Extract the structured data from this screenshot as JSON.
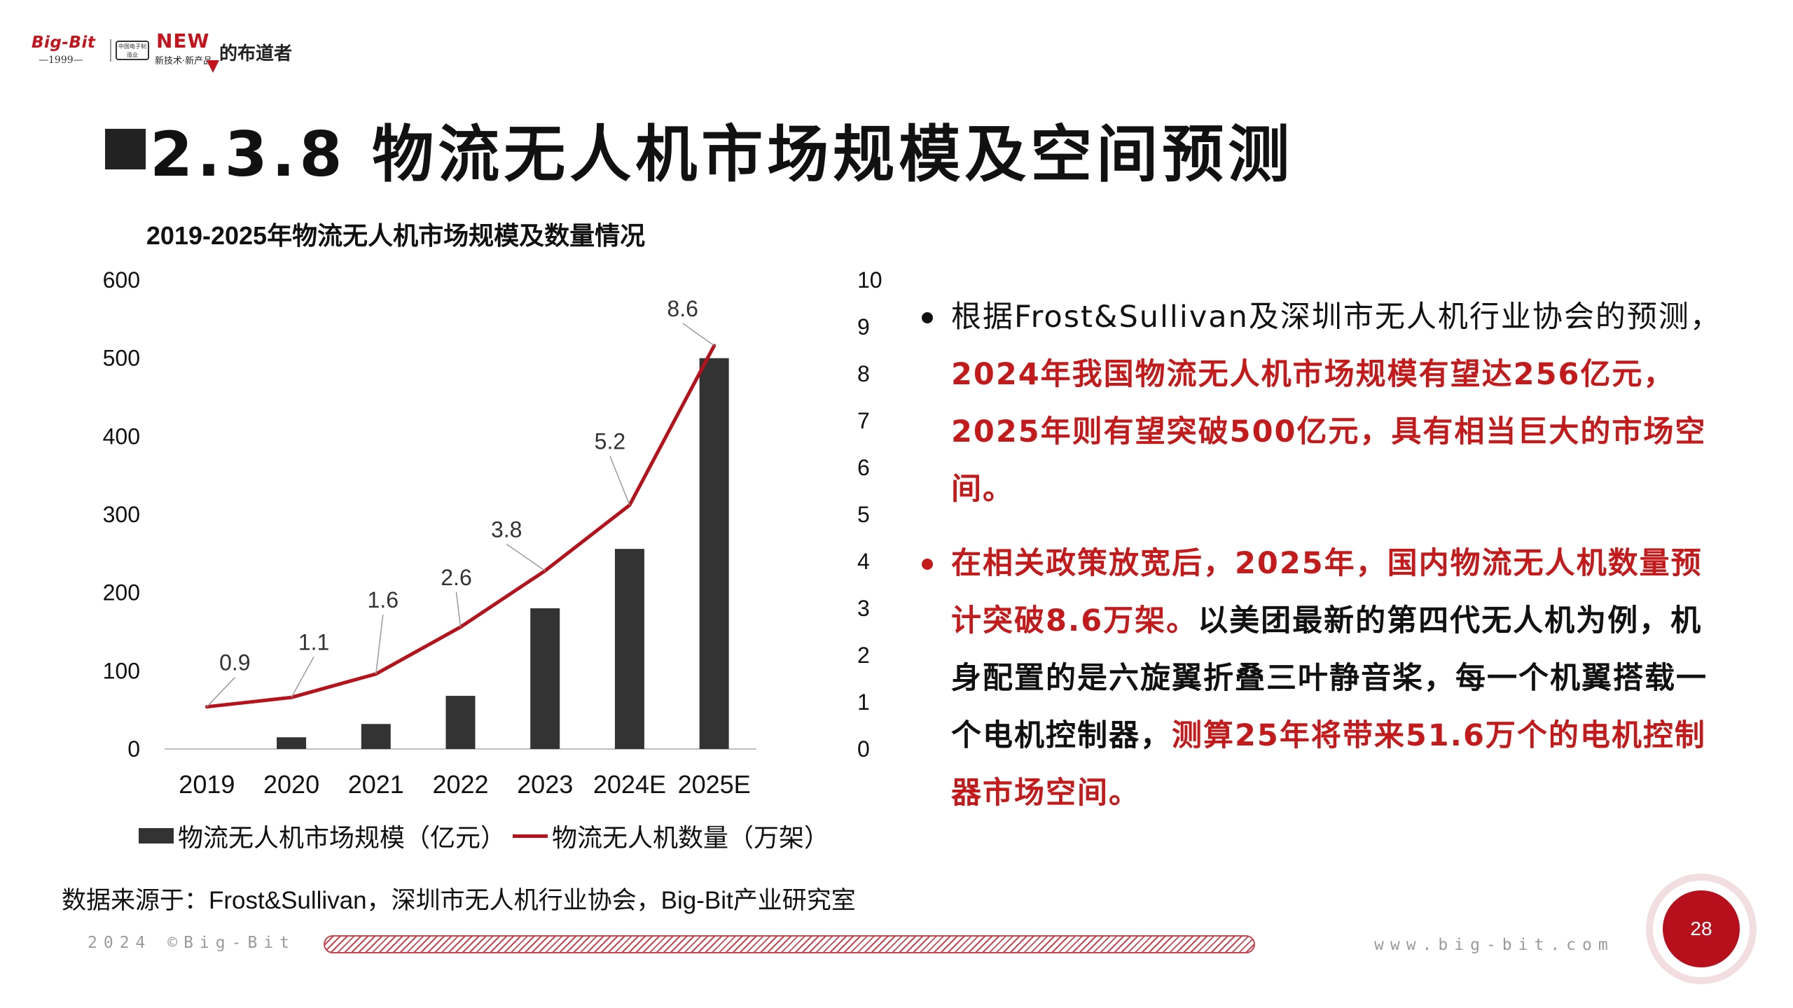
{
  "logo": {
    "brand": "Big-Bit",
    "year": "—1999—",
    "badge": "中国电子制造业",
    "new_text": "NEW",
    "sub_text": "新技术·新产品",
    "name": "的布道者"
  },
  "title": "2.3.8 物流无人机市场规模及空间预测",
  "chart_data": {
    "type": "bar+line",
    "title": "2019-2025年物流无人机市场规模及数量情况",
    "categories": [
      "2019",
      "2020",
      "2021",
      "2022",
      "2023",
      "2024E",
      "2025E"
    ],
    "series": [
      {
        "name": "物流无人机市场规模（亿元）",
        "type": "bar",
        "axis": "left",
        "values": [
          0,
          15,
          32,
          68,
          180,
          256,
          500
        ]
      },
      {
        "name": "物流无人机数量（万架）",
        "type": "line",
        "axis": "right",
        "values": [
          0.9,
          1.1,
          1.6,
          2.6,
          3.8,
          5.2,
          8.6
        ],
        "labels": [
          "0.9",
          "1.1",
          "1.6",
          "2.6",
          "3.8",
          "5.2",
          "8.6"
        ]
      }
    ],
    "y_left": {
      "min": 0,
      "max": 600,
      "ticks": [
        "0",
        "100",
        "200",
        "300",
        "400",
        "500",
        "600"
      ]
    },
    "y_right": {
      "min": 0,
      "max": 10,
      "ticks": [
        "0",
        "1",
        "2",
        "3",
        "4",
        "5",
        "6",
        "7",
        "8",
        "9",
        "10"
      ]
    },
    "legend_position": "bottom",
    "colors": {
      "bar": "#333333",
      "line": "#b5121b",
      "axis": "#bfbfbf",
      "label_leader": "#9a9a9a"
    }
  },
  "legend": {
    "bar_label": "物流无人机市场规模（亿元）",
    "line_label": "物流无人机数量（万架）"
  },
  "bullets": [
    {
      "p1": "根据Frost&Sullivan及深圳市无人机行业协会的预测，",
      "p2": "2024年我国物流无人机市场规模有望达256亿元，2025年则有望突破500亿元，具有相当巨大的市场空间。"
    },
    {
      "p1": "在相关政策放宽后，2025年，国内物流无人机数量预计突破8.6万架。",
      "p2": "以美团最新的第四代无人机为例，机身配置的是六旋翼折叠三叶静音桨，每一个机翼搭载一个电机控制器，",
      "p3": "测算25年将带来51.6万个的电机控制器市场空间。"
    }
  ],
  "source": "数据来源于：Frost&Sullivan，深圳市无人机行业协会，Big-Bit产业研究室",
  "footer": {
    "left": "2024 ©Big-Bit",
    "right": "www.big-bit.com",
    "page_number": "28"
  },
  "colors": {
    "accent": "#c41a1c",
    "dot_black": "#111111",
    "dot_red": "#c41a1c"
  }
}
